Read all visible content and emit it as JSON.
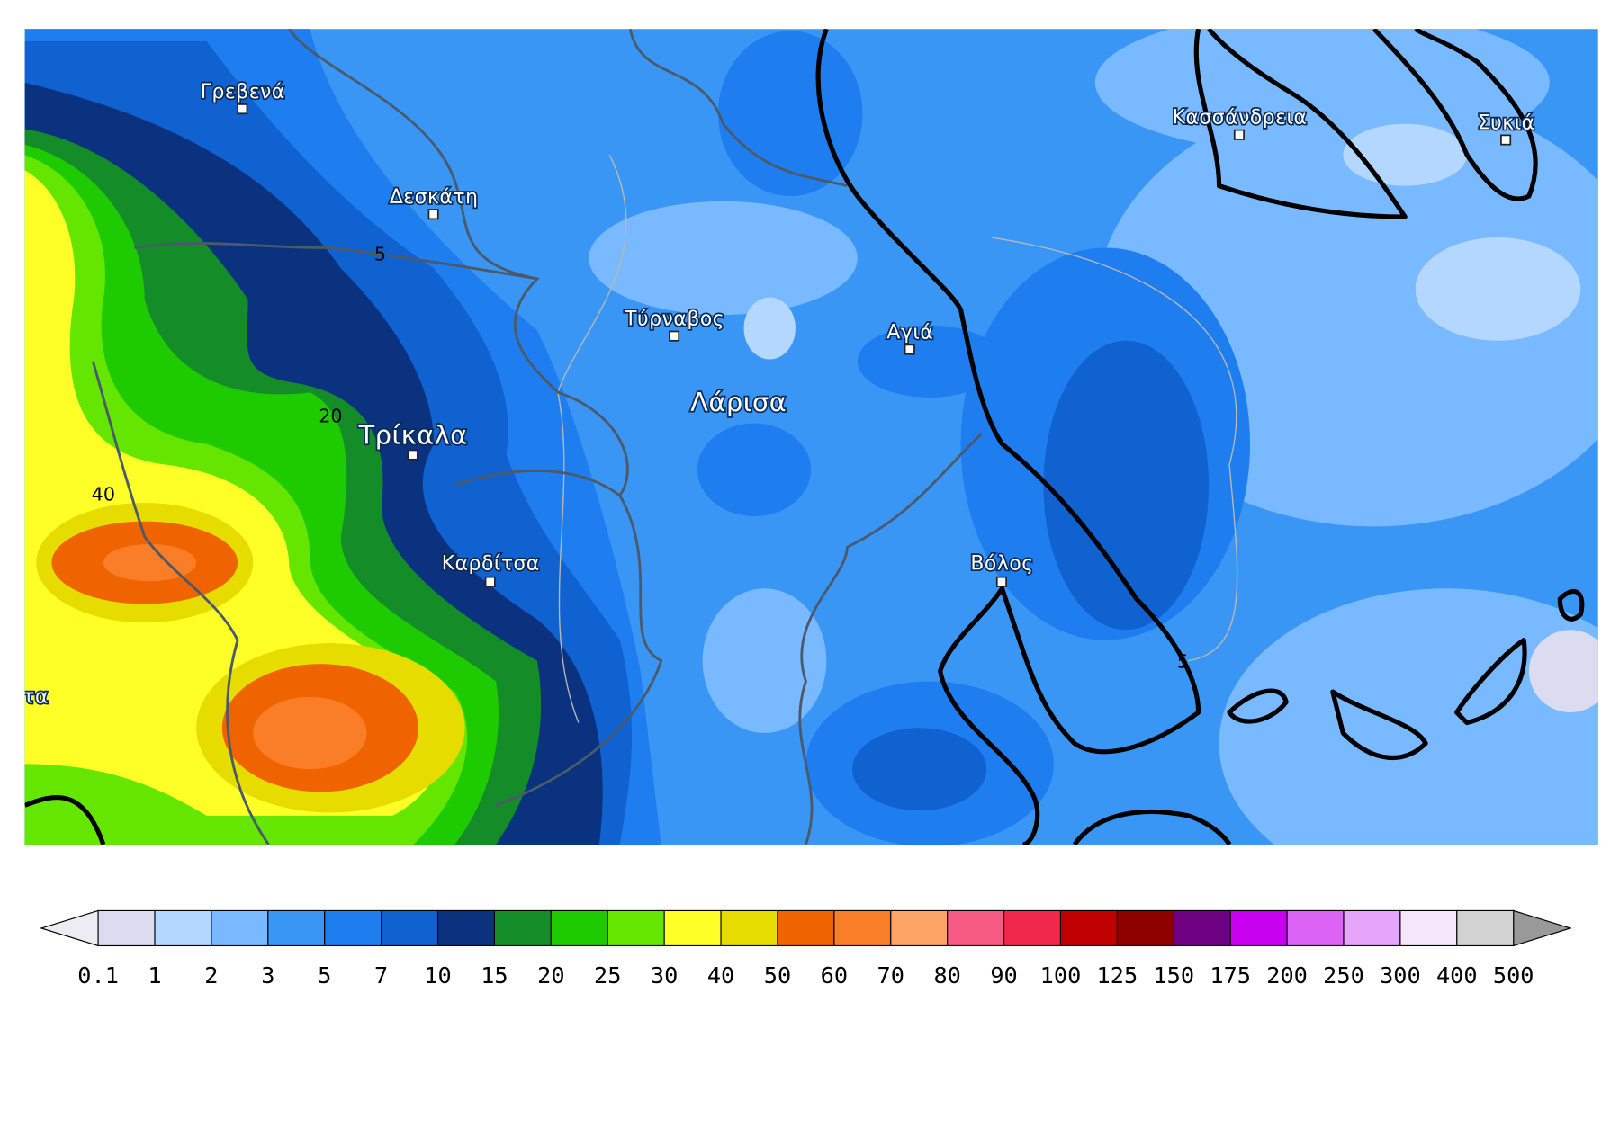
{
  "map": {
    "cities": [
      {
        "label": "Γρεβενά"
      },
      {
        "label": "Δεσκάτη"
      },
      {
        "label": "Τύρναβος"
      },
      {
        "label": "Αγιά"
      },
      {
        "label": "Κασσάνδρεια"
      },
      {
        "label": "Συκιά"
      },
      {
        "label": "Λάρισα"
      },
      {
        "label": "Τρίκαλα"
      },
      {
        "label": "Καρδίτσα"
      },
      {
        "label": "Βόλος"
      },
      {
        "label": "τα"
      }
    ],
    "contour_labels": [
      5,
      20,
      40,
      5
    ]
  },
  "colorbar": {
    "ticks": [
      0.1,
      1,
      2,
      3,
      5,
      7,
      10,
      15,
      20,
      25,
      30,
      40,
      50,
      60,
      70,
      80,
      90,
      100,
      125,
      150,
      175,
      200,
      250,
      300,
      400,
      500
    ],
    "colors": [
      "#dcdcf0",
      "#b4d7ff",
      "#78b9ff",
      "#3a96f5",
      "#1e7ef0",
      "#1062d0",
      "#0a327e",
      "#148c28",
      "#1ecb00",
      "#64e600",
      "#ffff28",
      "#e6dc00",
      "#f06400",
      "#fa7d28",
      "#fca366",
      "#f75a82",
      "#f0284b",
      "#c00000",
      "#8c0000",
      "#6e0082",
      "#c800f0",
      "#dc64f5",
      "#e6a5fa",
      "#f5e6fa",
      "#d2d2d2"
    ],
    "under_color": "#ececf2",
    "over_color": "#999999"
  }
}
